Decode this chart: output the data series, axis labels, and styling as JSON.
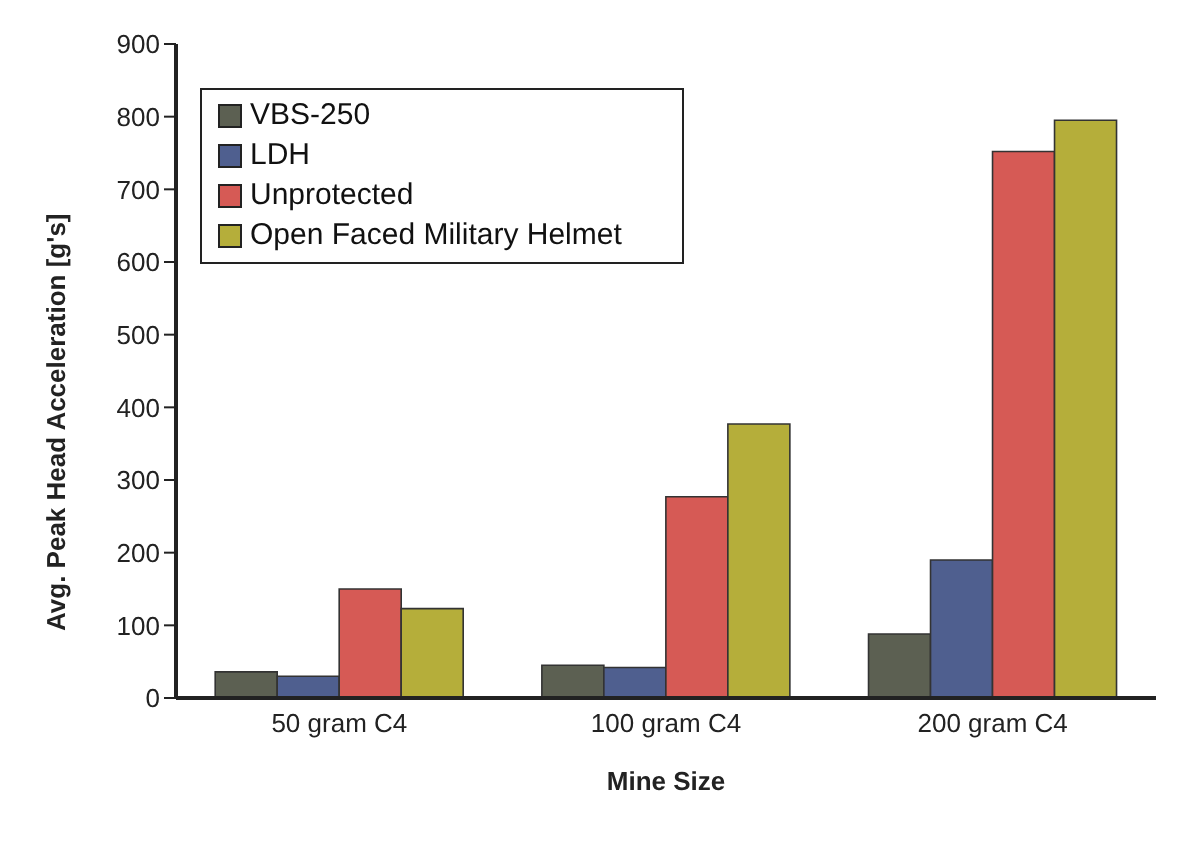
{
  "chart_data": {
    "type": "bar",
    "xlabel": "Mine Size",
    "ylabel": "Avg. Peak Head Acceleration [g's]",
    "categories": [
      "50 gram C4",
      "100 gram C4",
      "200 gram C4"
    ],
    "series": [
      {
        "name": "VBS-250",
        "color": "#5c6052",
        "values": [
          36,
          45,
          88
        ]
      },
      {
        "name": "LDH",
        "color": "#4f5f8f",
        "values": [
          30,
          42,
          190
        ]
      },
      {
        "name": "Unprotected",
        "color": "#d65a55",
        "values": [
          150,
          277,
          752
        ]
      },
      {
        "name": "Open Faced Military Helmet",
        "color": "#b5ae3a",
        "values": [
          123,
          377,
          795
        ]
      }
    ],
    "ylim": [
      0,
      900
    ],
    "yticks": [
      0,
      100,
      200,
      300,
      400,
      500,
      600,
      700,
      800,
      900
    ],
    "grid": false,
    "legend": "top left"
  }
}
